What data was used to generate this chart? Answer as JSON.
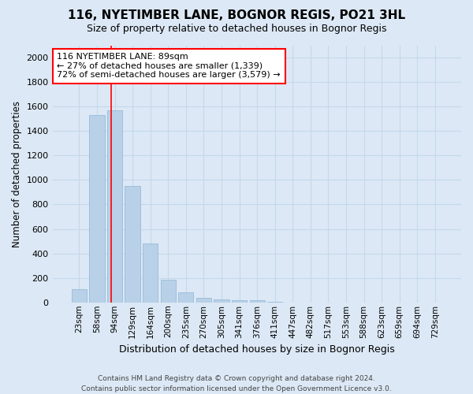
{
  "title": "116, NYETIMBER LANE, BOGNOR REGIS, PO21 3HL",
  "subtitle": "Size of property relative to detached houses in Bognor Regis",
  "xlabel": "Distribution of detached houses by size in Bognor Regis",
  "ylabel": "Number of detached properties",
  "footer_line1": "Contains HM Land Registry data © Crown copyright and database right 2024.",
  "footer_line2": "Contains public sector information licensed under the Open Government Licence v3.0.",
  "categories": [
    "23sqm",
    "58sqm",
    "94sqm",
    "129sqm",
    "164sqm",
    "200sqm",
    "235sqm",
    "270sqm",
    "305sqm",
    "341sqm",
    "376sqm",
    "411sqm",
    "447sqm",
    "482sqm",
    "517sqm",
    "553sqm",
    "588sqm",
    "623sqm",
    "659sqm",
    "694sqm",
    "729sqm"
  ],
  "values": [
    105,
    1530,
    1570,
    950,
    480,
    185,
    85,
    35,
    25,
    15,
    15,
    5,
    0,
    0,
    0,
    0,
    0,
    0,
    0,
    0,
    0
  ],
  "bar_color": "#b8d0e8",
  "bar_edge_color": "#8fb5d5",
  "grid_color": "#c5d8ec",
  "background_color": "#dce8f5",
  "plot_bg_color": "#dce8f5",
  "vline_x": 1.82,
  "vline_color": "red",
  "annotation_text": "116 NYETIMBER LANE: 89sqm\n← 27% of detached houses are smaller (1,339)\n72% of semi-detached houses are larger (3,579) →",
  "annotation_box_color": "white",
  "annotation_box_edge_color": "red",
  "ylim": [
    0,
    2100
  ],
  "yticks": [
    0,
    200,
    400,
    600,
    800,
    1000,
    1200,
    1400,
    1600,
    1800,
    2000
  ]
}
